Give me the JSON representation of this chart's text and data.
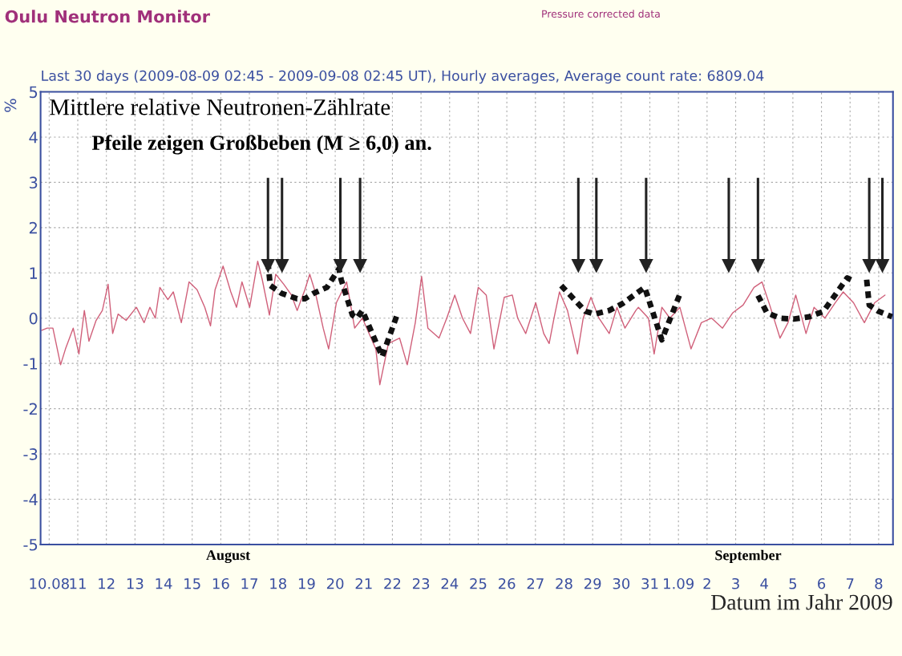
{
  "chart_data": {
    "type": "line",
    "title": "Oulu Neutron Monitor",
    "subtitle": "Last 30 days (2009-08-09 02:45 - 2009-09-08 02:45 UT), Hourly averages, Average count rate: 6809.04",
    "ylabel": "%",
    "xlabel": "Datum im Jahr 2009",
    "annotations": [
      "Pressure corrected data",
      "Mittlere relative Neutronen-Zählrate",
      "Pfeile zeigen Großbeben (M ≥ 6,0) an.",
      "August",
      "September"
    ],
    "xlim": [
      "2009-08-09T16:48",
      "2009-09-08T12:00"
    ],
    "ylim": [
      -5,
      5
    ],
    "yticks": [
      -5,
      -4,
      -3,
      -2,
      -1,
      0,
      1,
      2,
      3,
      4,
      5
    ],
    "xticks": [
      {
        "value": "2009-08-10",
        "label": "10.08"
      },
      {
        "value": "2009-08-11",
        "label": "11"
      },
      {
        "value": "2009-08-12",
        "label": "12"
      },
      {
        "value": "2009-08-13",
        "label": "13"
      },
      {
        "value": "2009-08-14",
        "label": "14"
      },
      {
        "value": "2009-08-15",
        "label": "15"
      },
      {
        "value": "2009-08-16",
        "label": "16"
      },
      {
        "value": "2009-08-17",
        "label": "17"
      },
      {
        "value": "2009-08-18",
        "label": "18"
      },
      {
        "value": "2009-08-19",
        "label": "19"
      },
      {
        "value": "2009-08-20",
        "label": "20"
      },
      {
        "value": "2009-08-21",
        "label": "21"
      },
      {
        "value": "2009-08-22",
        "label": "22"
      },
      {
        "value": "2009-08-23",
        "label": "23"
      },
      {
        "value": "2009-08-24",
        "label": "24"
      },
      {
        "value": "2009-08-25",
        "label": "25"
      },
      {
        "value": "2009-08-26",
        "label": "26"
      },
      {
        "value": "2009-08-27",
        "label": "27"
      },
      {
        "value": "2009-08-28",
        "label": "28"
      },
      {
        "value": "2009-08-29",
        "label": "29"
      },
      {
        "value": "2009-08-30",
        "label": "30"
      },
      {
        "value": "2009-08-31",
        "label": "31"
      },
      {
        "value": "2009-09-01",
        "label": "1.09"
      },
      {
        "value": "2009-09-02",
        "label": "2"
      },
      {
        "value": "2009-09-03",
        "label": "3"
      },
      {
        "value": "2009-09-04",
        "label": "4"
      },
      {
        "value": "2009-09-05",
        "label": "5"
      },
      {
        "value": "2009-09-06",
        "label": "6"
      },
      {
        "value": "2009-09-07",
        "label": "7"
      },
      {
        "value": "2009-09-08",
        "label": "8"
      }
    ],
    "grid": true,
    "legend": false,
    "series": [
      {
        "color": "#d0607a",
        "line_style": "solid",
        "x": [
          "2009-08-09T17:46",
          "2009-08-09T22:19",
          "2009-08-10T03:07",
          "2009-08-10T09:36",
          "2009-08-10T13:41",
          "2009-08-10T20:10",
          "2009-08-11T00:58",
          "2009-08-11T05:31",
          "2009-08-11T09:22",
          "2009-08-11T15:22",
          "2009-08-11T20:38",
          "2009-08-12T01:26",
          "2009-08-12T05:17",
          "2009-08-12T09:50",
          "2009-08-12T16:34",
          "2009-08-13T01:12",
          "2009-08-13T07:41",
          "2009-08-13T12:29",
          "2009-08-13T17:02",
          "2009-08-13T20:53",
          "2009-08-14T03:36",
          "2009-08-14T08:10",
          "2009-08-14T14:53",
          "2009-08-14T21:22",
          "2009-08-15T04:05",
          "2009-08-15T10:34",
          "2009-08-15T15:22",
          "2009-08-15T19:12",
          "2009-08-16T01:55",
          "2009-08-16T08:24",
          "2009-08-16T13:12",
          "2009-08-16T17:46",
          "2009-08-17T00:14",
          "2009-08-17T06:58",
          "2009-08-17T10:48",
          "2009-08-17T16:48",
          "2009-08-17T22:05",
          "2009-08-18T04:48",
          "2009-08-18T11:17",
          "2009-08-18T16:05",
          "2009-08-18T22:34",
          "2009-08-19T02:38",
          "2009-08-19T07:12",
          "2009-08-19T13:55",
          "2009-08-19T18:29",
          "2009-08-20T00:58",
          "2009-08-20T09:36",
          "2009-08-20T16:19",
          "2009-08-20T22:48",
          "2009-08-21T10:05",
          "2009-08-21T13:26",
          "2009-08-21T20:38",
          "2009-08-22T06:00",
          "2009-08-22T12:29",
          "2009-08-22T19:12",
          "2009-08-23T00:29",
          "2009-08-23T05:46",
          "2009-08-23T15:07",
          "2009-08-23T21:36",
          "2009-08-24T04:19",
          "2009-08-24T10:48",
          "2009-08-24T17:31",
          "2009-08-25T00:00",
          "2009-08-25T06:43",
          "2009-08-25T13:12",
          "2009-08-25T21:50",
          "2009-08-26T04:34",
          "2009-08-26T09:07",
          "2009-08-26T15:50",
          "2009-08-27T00:14",
          "2009-08-27T06:58",
          "2009-08-27T11:31",
          "2009-08-27T15:36",
          "2009-08-27T20:10",
          "2009-08-28T02:53",
          "2009-08-28T11:17",
          "2009-08-28T16:05",
          "2009-08-28T22:34",
          "2009-08-29T05:17",
          "2009-08-29T13:55",
          "2009-08-29T20:24",
          "2009-08-30T03:07",
          "2009-08-30T12:14",
          "2009-08-30T14:24",
          "2009-08-30T22:48",
          "2009-08-31T03:36",
          "2009-08-31T10:05",
          "2009-08-31T16:48",
          "2009-09-01T01:12",
          "2009-09-01T10:34",
          "2009-09-01T19:12",
          "2009-09-02T03:50",
          "2009-09-02T12:58",
          "2009-09-02T21:36",
          "2009-09-03T06:14",
          "2009-09-03T15:22",
          "2009-09-03T22:05",
          "2009-09-04T04:34",
          "2009-09-04T13:12",
          "2009-09-04T19:55",
          "2009-09-05T02:24",
          "2009-09-05T11:02",
          "2009-09-05T17:46",
          "2009-09-06T02:53",
          "2009-09-06T11:31",
          "2009-09-06T18:14",
          "2009-09-07T02:53",
          "2009-09-07T12:00",
          "2009-09-07T20:38",
          "2009-09-08T05:17"
        ],
        "values": [
          -0.27,
          -0.22,
          -0.22,
          -1.03,
          -0.68,
          -0.22,
          -0.79,
          0.17,
          -0.51,
          -0.05,
          0.17,
          0.75,
          -0.34,
          0.09,
          -0.05,
          0.24,
          -0.1,
          0.24,
          0,
          0.68,
          0.41,
          0.58,
          -0.1,
          0.8,
          0.63,
          0.24,
          -0.17,
          0.63,
          1.15,
          0.58,
          0.24,
          0.8,
          0.24,
          1.26,
          0.85,
          0.07,
          0.97,
          0.75,
          0.51,
          0.17,
          0.63,
          0.97,
          0.58,
          -0.22,
          -0.68,
          0.34,
          0.8,
          -0.22,
          0,
          -0.68,
          -1.47,
          -0.56,
          -0.44,
          -1.03,
          -0.1,
          0.92,
          -0.22,
          -0.44,
          0,
          0.51,
          0,
          -0.34,
          0.68,
          0.51,
          -0.68,
          0.46,
          0.51,
          0,
          -0.34,
          0.34,
          -0.34,
          -0.56,
          0,
          0.58,
          0.17,
          -0.79,
          0,
          0.46,
          0,
          -0.34,
          0.24,
          -0.22,
          0.17,
          0.24,
          0,
          -0.79,
          0.24,
          0,
          0.24,
          -0.68,
          -0.1,
          0,
          -0.22,
          0.12,
          0.29,
          0.68,
          0.8,
          0.29,
          -0.44,
          -0.1,
          0.51,
          -0.34,
          0.24,
          0,
          0.34,
          0.58,
          0.34,
          -0.1,
          0.34,
          0.51
        ]
      },
      {
        "color": "#111111",
        "line_style": "dashed",
        "x": [
          "2009-08-17T15:36",
          "2009-08-17T17:31",
          "2009-08-18T02:53",
          "2009-08-18T16:05",
          "2009-08-18T22:34",
          "2009-08-19T06:00",
          "2009-08-19T17:02",
          "2009-08-20T03:07",
          "2009-08-20T05:02",
          "2009-08-20T14:24",
          "2009-08-20T18:14",
          "2009-08-20T22:48",
          "2009-08-21T15:22",
          "2009-08-22T04:34",
          "2009-08-25T00:00",
          "2009-08-27T21:36",
          "2009-08-28T18:00",
          "2009-08-29T01:55",
          "2009-08-29T13:55",
          "2009-08-30T00:58",
          "2009-08-30T19:41",
          "2009-08-31T10:05",
          "2009-09-01T00:43",
          "2009-09-02T09:36",
          "2009-09-03T18:43",
          "2009-09-04T02:10",
          "2009-09-04T13:12",
          "2009-09-05T00:29",
          "2009-09-05T13:41",
          "2009-09-06T01:41",
          "2009-09-06T21:36",
          "2009-09-07T00:43",
          "2009-09-07T07:12",
          "2009-09-07T13:55",
          "2009-09-07T16:05",
          "2009-09-08T00:00",
          "2009-09-08T11:17"
        ],
        "values": [
          1.23,
          0.72,
          0.55,
          0.43,
          0.43,
          0.55,
          0.68,
          1.09,
          0.85,
          0.07,
          0,
          0.17,
          -0.85,
          0.12,
          null,
          0.72,
          0.15,
          0.09,
          0.17,
          0.32,
          0.68,
          -0.48,
          0.5,
          null,
          0.5,
          0.12,
          0,
          -0.02,
          0.03,
          0.15,
          0.89,
          0.85,
          null,
          0.85,
          0.29,
          0.15,
          0.03
        ]
      },
      {
        "type": "scatter",
        "marker": "triangle",
        "color": "#222222",
        "x": [
          "2009-08-17T15:36",
          "2009-08-18T03:22",
          "2009-08-20T04:19",
          "2009-08-20T20:53",
          "2009-08-28T12:00",
          "2009-08-29T03:07",
          "2009-08-30T20:53",
          "2009-09-02T18:14",
          "2009-09-03T18:43",
          "2009-09-07T16:05",
          "2009-09-08T03:07"
        ],
        "values": [
          1.15,
          1.15,
          1.15,
          1.15,
          1.15,
          1.15,
          1.15,
          1.15,
          1.15,
          1.15,
          1.15
        ],
        "errors": [
          [
            1.15,
            3.1
          ],
          [
            1.15,
            3.1
          ],
          [
            1.15,
            3.1
          ],
          [
            1.15,
            3.1
          ],
          [
            1.15,
            3.1
          ],
          [
            1.15,
            3.1
          ],
          [
            1.15,
            3.1
          ],
          [
            1.15,
            3.1
          ],
          [
            1.15,
            3.1
          ],
          [
            1.15,
            3.1
          ],
          [
            1.15,
            3.1
          ]
        ]
      }
    ]
  }
}
